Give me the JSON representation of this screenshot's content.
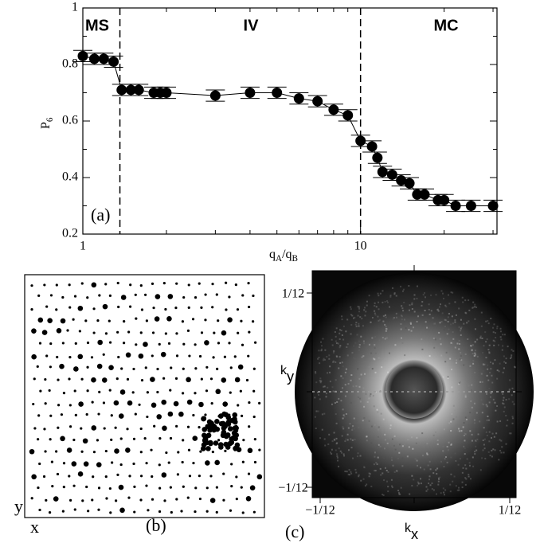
{
  "chart_data": {
    "type": "scatter",
    "log_x": true,
    "xlabel": "qA/qB",
    "ylabel": "P6",
    "panel_label": "(a)",
    "annotations": [
      "MS",
      "IV",
      "MC"
    ],
    "vlines": [
      1.36,
      10
    ],
    "x": [
      1,
      1.1,
      1.19,
      1.29,
      1.38,
      1.49,
      1.59,
      1.8,
      1.9,
      2,
      3,
      4,
      5,
      6,
      7,
      8,
      9,
      10,
      11,
      11.5,
      12,
      13,
      14,
      15,
      16,
      17,
      19,
      20,
      22,
      25,
      30
    ],
    "values": [
      0.83,
      0.82,
      0.82,
      0.81,
      0.71,
      0.71,
      0.71,
      0.7,
      0.7,
      0.7,
      0.69,
      0.7,
      0.7,
      0.68,
      0.67,
      0.64,
      0.62,
      0.53,
      0.51,
      0.47,
      0.42,
      0.41,
      0.39,
      0.38,
      0.34,
      0.34,
      0.32,
      0.32,
      0.3,
      0.3,
      0.3
    ],
    "errors": [
      0.02,
      0.02,
      0.02,
      0.02,
      0.02,
      0.02,
      0.02,
      0.02,
      0.02,
      0.02,
      0.02,
      0.02,
      0.02,
      0.02,
      0.02,
      0.02,
      0.02,
      0.02,
      0.02,
      0.02,
      0.02,
      0.02,
      0.02,
      0.02,
      0.02,
      0.02,
      0.02,
      0.02,
      0.02,
      0.02,
      0.02
    ],
    "color": "#000000",
    "xlim": [
      1,
      31
    ],
    "ylim": [
      0.2,
      1
    ],
    "xticks": [
      1,
      10
    ],
    "xticks_minor": [
      2,
      3,
      4,
      5,
      6,
      7,
      8,
      9,
      20,
      30
    ],
    "yticks": [
      0.2,
      0.4,
      0.6,
      0.8,
      1
    ],
    "yticks_minor": [
      0.3,
      0.5,
      0.7,
      0.9
    ]
  },
  "panel_b": {
    "label": "(b)",
    "xlabel": "x",
    "ylabel": "y"
  },
  "panel_c": {
    "label": "(c)",
    "xlabel": "kx",
    "ylabel": "ky",
    "y_top": "1/12",
    "y_bottom": "−1/12",
    "x_left": "−1/12",
    "x_right": "1/12"
  }
}
